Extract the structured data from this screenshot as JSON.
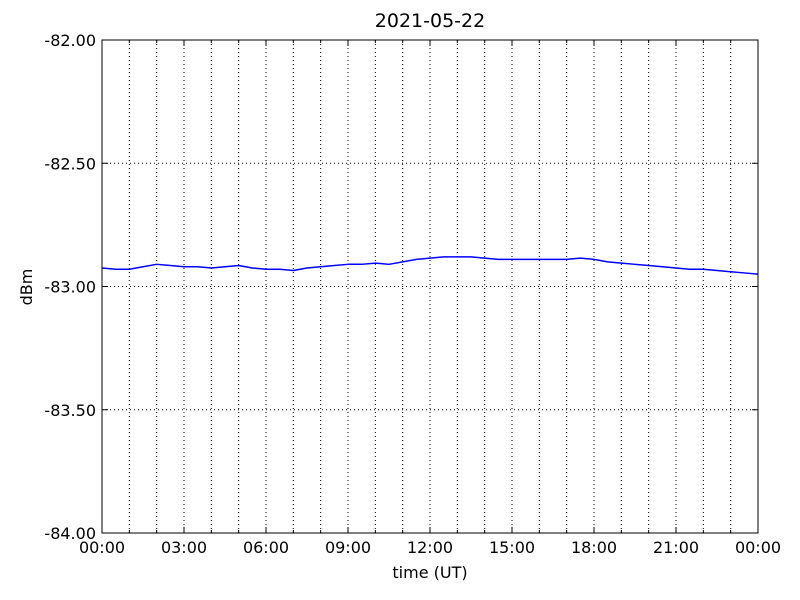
{
  "chart_data": {
    "type": "line",
    "title": "2021-05-22",
    "xlabel": "time (UT)",
    "ylabel": "dBm",
    "x": [
      0,
      0.5,
      1,
      1.5,
      2,
      2.5,
      3,
      3.5,
      4,
      4.5,
      5,
      5.5,
      6,
      6.5,
      7,
      7.5,
      8,
      8.5,
      9,
      9.5,
      10,
      10.5,
      11,
      11.5,
      12,
      12.5,
      13,
      13.5,
      14,
      14.5,
      15,
      15.5,
      16,
      16.5,
      17,
      17.5,
      18,
      18.5,
      19,
      19.5,
      20,
      20.5,
      21,
      21.5,
      22,
      22.5,
      23,
      23.5,
      24
    ],
    "series": [
      {
        "color": "#0000ff",
        "values": [
          -82.925,
          -82.93,
          -82.93,
          -82.92,
          -82.91,
          -82.915,
          -82.92,
          -82.92,
          -82.925,
          -82.92,
          -82.915,
          -82.925,
          -82.93,
          -82.93,
          -82.935,
          -82.925,
          -82.92,
          -82.915,
          -82.91,
          -82.91,
          -82.905,
          -82.91,
          -82.9,
          -82.89,
          -82.885,
          -82.88,
          -82.88,
          -82.88,
          -82.885,
          -82.89,
          -82.89,
          -82.89,
          -82.89,
          -82.89,
          -82.89,
          -82.885,
          -82.89,
          -82.9,
          -82.905,
          -82.91,
          -82.915,
          -82.92,
          -82.925,
          -82.93,
          -82.93,
          -82.935,
          -82.94,
          -82.945,
          -82.95
        ]
      }
    ],
    "xlim": [
      0,
      24
    ],
    "xticks": [
      {
        "value": 0,
        "label": "00:00"
      },
      {
        "value": 3,
        "label": "03:00"
      },
      {
        "value": 6,
        "label": "06:00"
      },
      {
        "value": 9,
        "label": "09:00"
      },
      {
        "value": 12,
        "label": "12:00"
      },
      {
        "value": 15,
        "label": "15:00"
      },
      {
        "value": 18,
        "label": "18:00"
      },
      {
        "value": 21,
        "label": "21:00"
      },
      {
        "value": 24,
        "label": "00:00"
      }
    ],
    "xminorticks": [
      1,
      2,
      4,
      5,
      7,
      8,
      10,
      11,
      13,
      14,
      16,
      17,
      19,
      20,
      22,
      23
    ],
    "ylim": [
      -84,
      -82
    ],
    "yticks": [
      {
        "value": -84,
        "label": "-84.00"
      },
      {
        "value": -83.5,
        "label": "-83.50"
      },
      {
        "value": -83,
        "label": "-83.00"
      },
      {
        "value": -82.5,
        "label": "-82.50"
      },
      {
        "value": -82,
        "label": "-82.00"
      }
    ],
    "grid": true
  }
}
